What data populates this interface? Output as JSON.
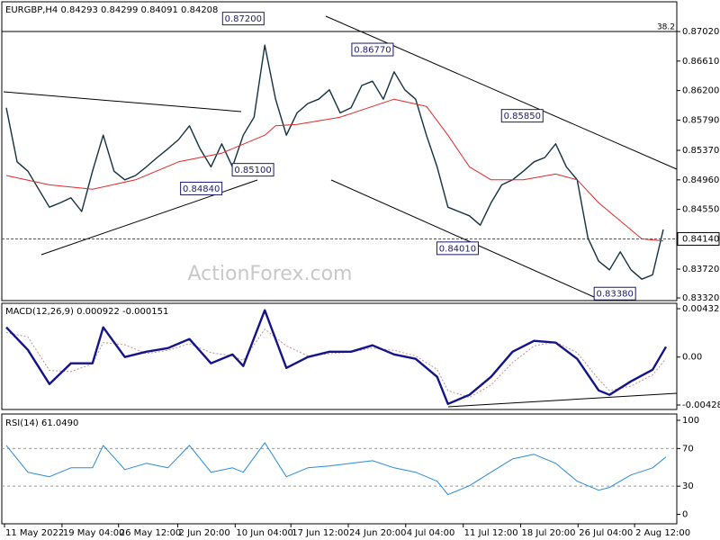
{
  "chart_data": [
    {
      "type": "line",
      "title": "EURGBP,H4 0.84293 0.84299 0.84091 0.84208",
      "watermark": "ActionForex.com",
      "xlim": [
        -0.42,
        62.25
      ],
      "ylim": [
        0.83283,
        0.87433
      ],
      "yticks": [
        {
          "value": 0.8702,
          "label": "0.87020"
        },
        {
          "value": 0.8661,
          "label": "0.86610"
        },
        {
          "value": 0.862,
          "label": "0.86200"
        },
        {
          "value": 0.8579,
          "label": "0.85790"
        },
        {
          "value": 0.8537,
          "label": "0.85370"
        },
        {
          "value": 0.8496,
          "label": "0.84960"
        },
        {
          "value": 0.8455,
          "label": "0.84550"
        },
        {
          "value": 0.8414,
          "label": "0.84140"
        },
        {
          "value": 0.8372,
          "label": "0.83720"
        },
        {
          "value": 0.8332,
          "label": "0.83320"
        }
      ],
      "last_price": 0.8414,
      "fib": {
        "value": 0.8702,
        "label": "38.2"
      },
      "annotations": [
        {
          "value": 0.872,
          "label": "0.87200",
          "x": 22.0
        },
        {
          "value": 0.8677,
          "label": "0.86770",
          "x": 34.0
        },
        {
          "value": 0.8585,
          "label": "0.85850",
          "x": 47.9
        },
        {
          "value": 0.8401,
          "label": "0.84010",
          "x": 41.9
        },
        {
          "value": 0.8338,
          "label": "0.83380",
          "x": 56.5
        },
        {
          "value": 0.851,
          "label": "0.85100",
          "x": 22.9
        },
        {
          "value": 0.8484,
          "label": "0.84840",
          "x": 18.1
        }
      ],
      "series": [
        {
          "color": "#123040",
          "width": 1.4,
          "values": [
            0.8596,
            0.8521,
            0.8508,
            0.8483,
            0.8458,
            0.8464,
            0.8471,
            0.8452,
            0.8508,
            0.8558,
            0.8508,
            0.8496,
            0.8502,
            0.8514,
            0.8527,
            0.8539,
            0.8552,
            0.8571,
            0.8539,
            0.8514,
            0.8546,
            0.8514,
            0.8558,
            0.8583,
            0.8683,
            0.8608,
            0.8558,
            0.8589,
            0.8602,
            0.8608,
            0.8621,
            0.8589,
            0.8596,
            0.8627,
            0.8633,
            0.8608,
            0.8646,
            0.8621,
            0.8608,
            0.8558,
            0.8514,
            0.8458,
            0.8452,
            0.8446,
            0.8433,
            0.8464,
            0.8489,
            0.8496,
            0.8508,
            0.8521,
            0.8527,
            0.8546,
            0.8514,
            0.8496,
            0.8415,
            0.8383,
            0.8371,
            0.8396,
            0.8371,
            0.8358,
            0.8364,
            0.8427
          ]
        },
        {
          "color": "#e02828",
          "width": 1,
          "x": [
            0,
            4,
            8,
            12,
            16,
            20,
            24,
            25,
            27,
            31,
            33,
            36,
            39,
            41,
            43,
            45,
            48,
            51,
            53,
            55,
            57,
            59,
            61
          ],
          "values": [
            0.8502,
            0.8489,
            0.8483,
            0.8496,
            0.8521,
            0.8533,
            0.8558,
            0.8571,
            0.8573,
            0.8583,
            0.8593,
            0.8608,
            0.8598,
            0.8558,
            0.8514,
            0.8496,
            0.8496,
            0.8504,
            0.8496,
            0.8464,
            0.8439,
            0.8414,
            0.8411
          ]
        }
      ]
    },
    {
      "type": "line",
      "title": "MACD(12,26,9) 0.000922 -0.000151",
      "xlim": [
        -0.42,
        62.25
      ],
      "ylim": [
        -0.00469,
        0.004808
      ],
      "yticks": [
        {
          "value": 0.004325,
          "label": "0.004325"
        },
        {
          "value": 0,
          "label": "0.00"
        },
        {
          "value": -0.004288,
          "label": "-0.004288"
        }
      ],
      "series": [
        {
          "color": "#c09090",
          "width": 1,
          "style": "dotted",
          "x": [
            0,
            2,
            4,
            6,
            8,
            9,
            11,
            13,
            15,
            17,
            19,
            21,
            22,
            24,
            26,
            28,
            30,
            32,
            34,
            36,
            38,
            40,
            41,
            43,
            45,
            47,
            49,
            51,
            53,
            55,
            56,
            58,
            60,
            61.25
          ],
          "values": [
            0.0022,
            0.0018,
            -0.0012,
            -0.0013,
            -0.0006,
            0.0013,
            0.0011,
            0.0003,
            0.0006,
            0.0012,
            0.0004,
            0.0001,
            -0.0003,
            0.0025,
            0.001,
            0.0001,
            0.0003,
            0.00045,
            0.0008,
            0.0006,
            0.0001,
            -0.0011,
            -0.003,
            -0.0036,
            -0.0025,
            -0.0005,
            0.001,
            0.00135,
            0.0004,
            -0.002,
            -0.003,
            -0.0026,
            -0.0016,
            -0.00015
          ]
        },
        {
          "color": "#14148a",
          "width": 2.4,
          "x": [
            0,
            2,
            4,
            6,
            8,
            9,
            11,
            13,
            15,
            17,
            19,
            21,
            22,
            24,
            26,
            28,
            30,
            32,
            34,
            36,
            38,
            40,
            41,
            43,
            45,
            47,
            49,
            51,
            53,
            55,
            56,
            58,
            60,
            61.25
          ],
          "values": [
            0.00266,
            0.00064,
            -0.00241,
            -0.00056,
            -0.00056,
            0.00266,
            0,
            0.00048,
            0.0008,
            0.00161,
            -0.00056,
            0.00024,
            -0.0008,
            0.00419,
            -0.00097,
            0,
            0.00048,
            0.00048,
            0.00105,
            0.00024,
            -0.00016,
            -0.00177,
            -0.00419,
            -0.00338,
            -0.00177,
            0.00048,
            0.00145,
            0.00129,
            -0.00016,
            -0.00298,
            -0.00338,
            -0.00217,
            -0.00113,
            0.00092
          ]
        }
      ]
    },
    {
      "type": "line",
      "title": "RSI(14) 61.0490",
      "xlim": [
        -0.42,
        62.25
      ],
      "ylim": [
        -10,
        106.7
      ],
      "yticks": [
        100,
        70,
        30,
        0
      ],
      "levels": [
        70,
        30
      ],
      "xticks": [
        {
          "value": -0.17,
          "label": "11 May 2022"
        },
        {
          "value": 5.17,
          "label": "19 May 04:00"
        },
        {
          "value": 10.42,
          "label": "26 May 12:00"
        },
        {
          "value": 15.92,
          "label": "2 Jun 20:00"
        },
        {
          "value": 21.25,
          "label": "10 Jun 04:00"
        },
        {
          "value": 26.42,
          "label": "17 Jun 12:00"
        },
        {
          "value": 31.75,
          "label": "24 Jun 20:00"
        },
        {
          "value": 37.08,
          "label": "4 Jul 04:00"
        },
        {
          "value": 42.42,
          "label": "11 Jul 12:00"
        },
        {
          "value": 47.75,
          "label": "18 Jul 20:00"
        },
        {
          "value": 53.08,
          "label": "26 Jul 04:00"
        },
        {
          "value": 58.33,
          "label": "2 Aug 12:00"
        }
      ],
      "series": [
        {
          "color": "#2a8ad8",
          "width": 1,
          "x": [
            0,
            2,
            4,
            6,
            8,
            9,
            11,
            13,
            15,
            17,
            19,
            21,
            22,
            24,
            26,
            28,
            30,
            32,
            34,
            36,
            38,
            40,
            41,
            43,
            45,
            47,
            49,
            51,
            53,
            55,
            56,
            58,
            60,
            61.25
          ],
          "values": [
            73.3,
            44.8,
            40.0,
            49.5,
            49.5,
            73.3,
            47.6,
            54.3,
            49.5,
            73.3,
            44.8,
            49.5,
            44.8,
            76.2,
            40.0,
            49.5,
            51.4,
            54.3,
            57.1,
            49.5,
            44.8,
            35.2,
            21.0,
            30.5,
            44.8,
            59.0,
            63.8,
            54.3,
            35.2,
            25.7,
            28.6,
            41.9,
            49.5,
            61.05
          ]
        }
      ]
    }
  ]
}
